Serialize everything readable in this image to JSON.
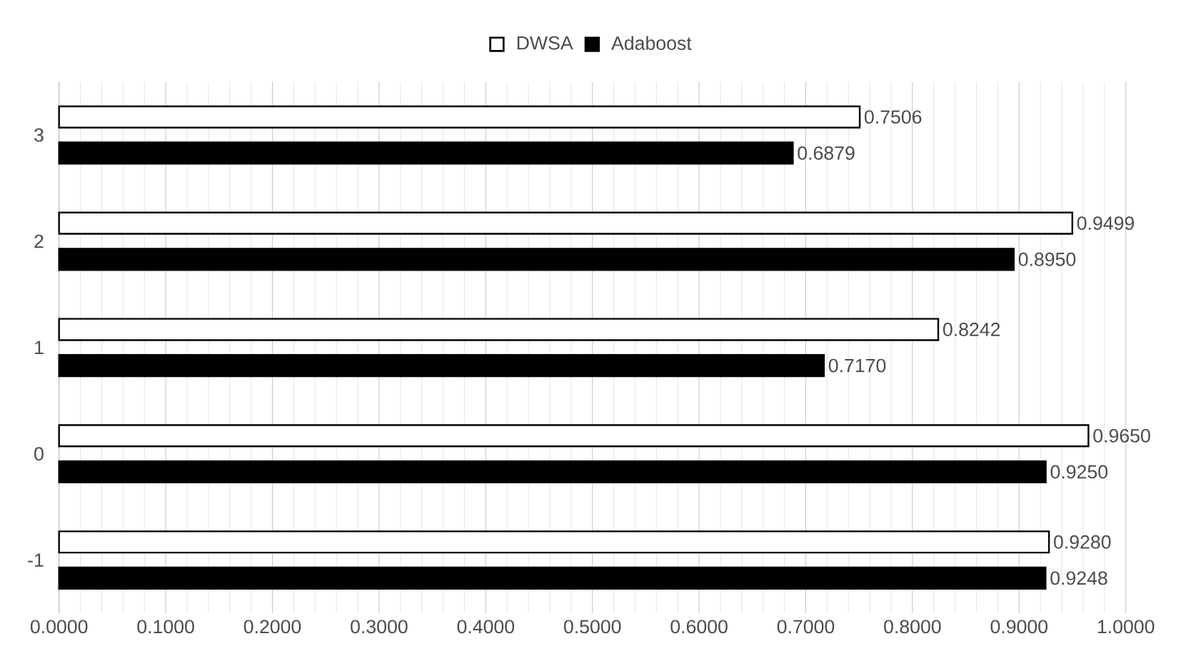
{
  "chart_data": {
    "type": "bar",
    "orientation": "horizontal",
    "categories": [
      "3",
      "2",
      "1",
      "0",
      "-1"
    ],
    "series": [
      {
        "name": "DWSA",
        "color": "#ffffff",
        "values": [
          0.7506,
          0.9499,
          0.8242,
          0.965,
          0.928
        ],
        "value_labels": [
          "0.7506",
          "0.9499",
          "0.8242",
          "0.9650",
          "0.9280"
        ]
      },
      {
        "name": "Adaboost",
        "color": "#000000",
        "values": [
          0.6879,
          0.895,
          0.717,
          0.925,
          0.9248
        ],
        "value_labels": [
          "0.6879",
          "0.8950",
          "0.7170",
          "0.9250",
          "0.9248"
        ]
      }
    ],
    "xlim": [
      0,
      1
    ],
    "xticks": [
      {
        "value": 0,
        "label": "0.0000"
      },
      {
        "value": 0.1,
        "label": "0.1000"
      },
      {
        "value": 0.2,
        "label": "0.2000"
      },
      {
        "value": 0.3,
        "label": "0.3000"
      },
      {
        "value": 0.4,
        "label": "0.4000"
      },
      {
        "value": 0.5,
        "label": "0.5000"
      },
      {
        "value": 0.6,
        "label": "0.6000"
      },
      {
        "value": 0.7,
        "label": "0.7000"
      },
      {
        "value": 0.8,
        "label": "0.8000"
      },
      {
        "value": 0.9,
        "label": "0.9000"
      },
      {
        "value": 1,
        "label": "1.0000"
      }
    ],
    "grid": "x",
    "legend": "top"
  }
}
